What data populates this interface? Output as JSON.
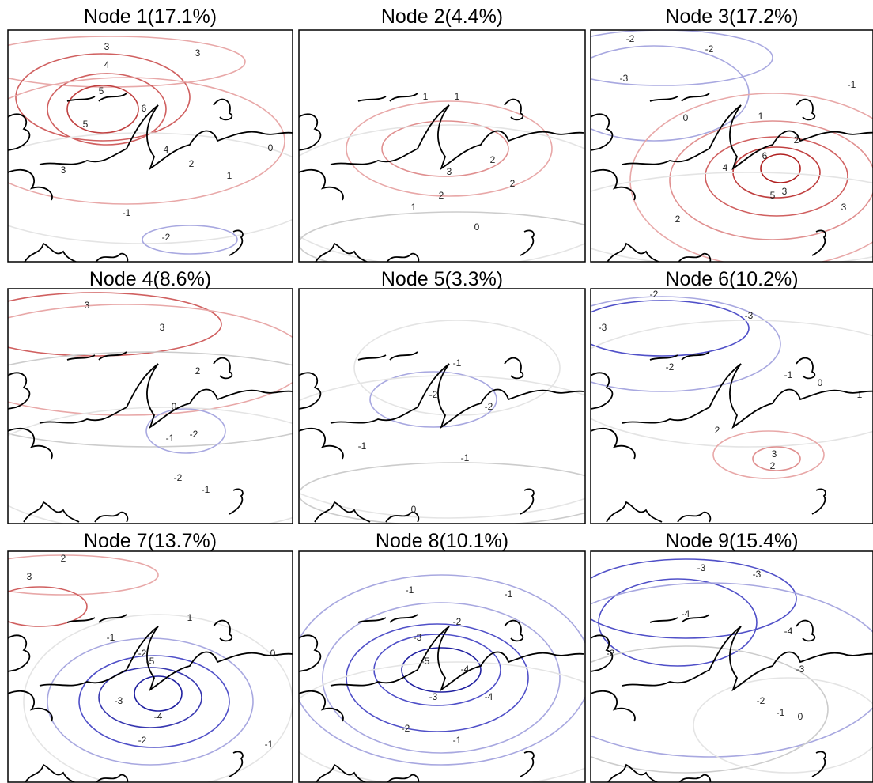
{
  "panels": [
    {
      "title": "Node 1(17.1%)",
      "contour_labels": [
        3,
        3,
        4,
        5,
        6,
        5,
        4,
        3,
        2,
        1,
        0,
        -1,
        -2
      ]
    },
    {
      "title": "Node 2(4.4%)",
      "contour_labels": [
        1,
        1,
        2,
        3,
        2,
        2,
        1,
        0
      ]
    },
    {
      "title": "Node 3(17.2%)",
      "contour_labels": [
        -2,
        -2,
        -3,
        -1,
        0,
        1,
        2,
        3,
        4,
        5,
        6,
        3,
        2
      ]
    },
    {
      "title": "Node 4(8.6%)",
      "contour_labels": [
        3,
        3,
        2,
        0,
        -1,
        -2,
        -2,
        -1
      ]
    },
    {
      "title": "Node 5(3.3%)",
      "contour_labels": [
        -1,
        -2,
        -2,
        -1,
        -1,
        0
      ]
    },
    {
      "title": "Node 6(10.2%)",
      "contour_labels": [
        -2,
        -3,
        -3,
        -2,
        -1,
        0,
        1,
        2,
        3,
        2
      ]
    },
    {
      "title": "Node 7(13.7%)",
      "contour_labels": [
        2,
        3,
        1,
        0,
        -1,
        -2,
        -3,
        -4,
        -5,
        -2,
        -1
      ]
    },
    {
      "title": "Node 8(10.1%)",
      "contour_labels": [
        -1,
        -1,
        -2,
        -3,
        -4,
        -5,
        -4,
        -3,
        -2,
        -1
      ]
    },
    {
      "title": "Node 9(15.4%)",
      "contour_labels": [
        -3,
        -3,
        -4,
        -4,
        -2,
        -3,
        -2,
        -1,
        0
      ]
    }
  ]
}
